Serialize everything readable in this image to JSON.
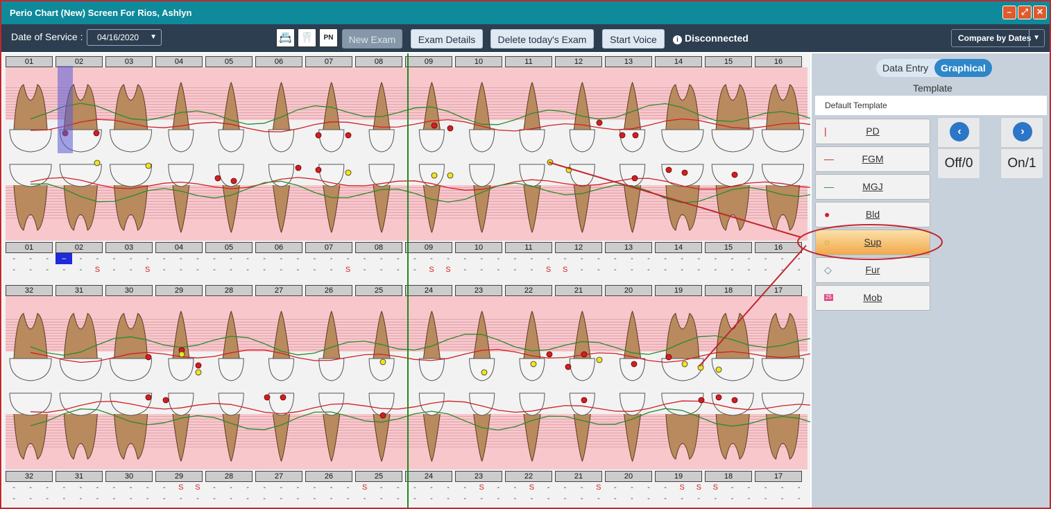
{
  "title": "Perio Chart (New) Screen For Rios, Ashlyn",
  "window_buttons": [
    "–",
    "⤢",
    "✕"
  ],
  "toolbar": {
    "date_label": "Date of Service :",
    "date_value": "04/16/2020",
    "new_exam": "New Exam",
    "exam_details": "Exam Details",
    "delete_exam": "Delete today's Exam",
    "start_voice": "Start Voice",
    "status": "Disconnected",
    "compare": "Compare by Dates",
    "icons": [
      "📇",
      "🦷",
      "PN"
    ]
  },
  "upper_numbers": [
    "01",
    "02",
    "03",
    "04",
    "05",
    "06",
    "07",
    "08",
    "09",
    "10",
    "11",
    "12",
    "13",
    "14",
    "15",
    "16"
  ],
  "lower_numbers": [
    "32",
    "31",
    "30",
    "29",
    "28",
    "27",
    "26",
    "25",
    "24",
    "23",
    "22",
    "21",
    "20",
    "19",
    "18",
    "17"
  ],
  "upper_row1": [
    "-",
    "-",
    "-",
    "–",
    "-",
    "-",
    "-",
    "-",
    "-",
    "-",
    "-",
    "-",
    "-",
    "-",
    "-",
    "-",
    "-",
    "-",
    "-",
    "-",
    "-",
    "-",
    "-",
    "-",
    "-",
    "-",
    "-",
    "-",
    "-",
    "-",
    "-",
    "-",
    "-",
    "-",
    "-",
    "-",
    "-",
    "-",
    "-",
    "-",
    "-",
    "-",
    "-",
    "-",
    "-",
    "-",
    "-",
    "-"
  ],
  "upper_row2": [
    "-",
    "-",
    "-",
    "-",
    "-",
    "S",
    "-",
    "-",
    "S",
    "-",
    "-",
    "-",
    "-",
    "-",
    "-",
    "-",
    "-",
    "-",
    "-",
    "-",
    "S",
    "-",
    "-",
    "-",
    "-",
    "S",
    "S",
    "-",
    "-",
    "-",
    "-",
    "-",
    "S",
    "S",
    "-",
    "-",
    "-",
    "-",
    "-",
    "-",
    "-",
    "-",
    "-",
    "-",
    "-",
    "-",
    "-",
    "-"
  ],
  "lower_row1": [
    "-",
    "-",
    "-",
    "-",
    "-",
    "-",
    "-",
    "-",
    "-",
    "-",
    "S",
    "S",
    "-",
    "-",
    "-",
    "-",
    "-",
    "-",
    "-",
    "-",
    "-",
    "S",
    "-",
    "-",
    "-",
    "-",
    "-",
    "-",
    "S",
    "-",
    "-",
    "S",
    "-",
    "-",
    "-",
    "S",
    "-",
    "-",
    "-",
    "-",
    "S",
    "S",
    "S",
    "-",
    "-",
    "-",
    "-",
    "-"
  ],
  "lower_row2": [
    "-",
    "-",
    "-",
    "-",
    "-",
    "-",
    "-",
    "-",
    "-",
    "-",
    "-",
    "-",
    "-",
    "-",
    "-",
    "-",
    "-",
    "-",
    "-",
    "-",
    "-",
    "-",
    "-",
    "-",
    "-",
    "-",
    "-",
    "-",
    "-",
    "-",
    "-",
    "-",
    "-",
    "-",
    "-",
    "-",
    "-",
    "-",
    "-",
    "-",
    "-",
    "-",
    "-",
    "-",
    "-",
    "-",
    "-",
    "-"
  ],
  "side": {
    "tab_data_entry": "Data Entry",
    "tab_graphical": "Graphical",
    "template_label": "Template",
    "template_value": "Default Template",
    "tools": [
      {
        "label": "PD",
        "sym": "|"
      },
      {
        "label": "FGM",
        "sym": "—"
      },
      {
        "label": "MGJ",
        "sym": "—"
      },
      {
        "label": "Bld",
        "sym": "●"
      },
      {
        "label": "Sup",
        "sym": "○"
      },
      {
        "label": "Fur",
        "sym": "◇"
      },
      {
        "label": "Mob",
        "sym": "25"
      }
    ],
    "prev": "‹",
    "next": "›",
    "off_value": "Off/0",
    "on_value": "On/1"
  },
  "colors": {
    "titlebar": "#0e8a9a",
    "toolbar": "#2c3e50",
    "fgm": "#d01f24",
    "mgj": "#2a8a2a",
    "bleeding": "#d01f24",
    "suppuration": "#f2e419",
    "highlight": "#f2a94c"
  }
}
